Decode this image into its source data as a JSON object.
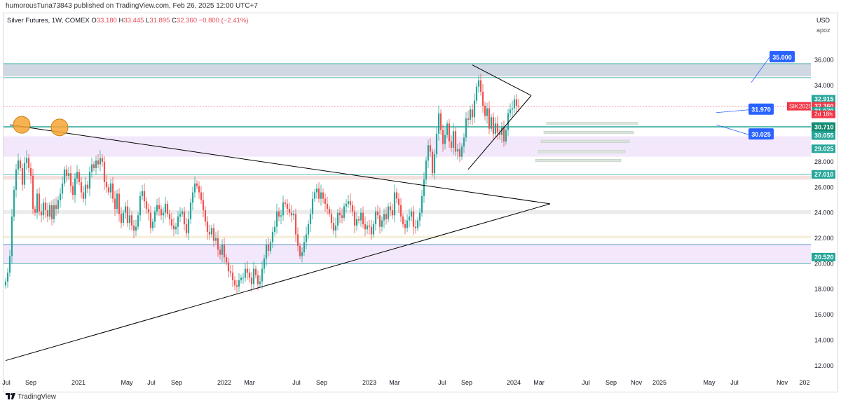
{
  "header": {
    "publisher_line": "humorousTuna73843 published on TradingView.com, Feb 26, 2025 12:00 UTC+7"
  },
  "legend": {
    "title": "Silver Futures, 1W, COMEX",
    "open_label": "O",
    "open": "33.180",
    "high_label": "H",
    "high": "33.445",
    "low_label": "L",
    "low": "31.895",
    "close_label": "C",
    "close": "32.360",
    "change": "−0.800 (−2.41%)"
  },
  "price_scale": {
    "currency": "USD",
    "mode": "apoz"
  },
  "footer": {
    "brand": "TradingView"
  },
  "colors": {
    "up": "#26a69a",
    "down": "#ef5350",
    "grid": "#f0f3fa",
    "callout": "#2962ff",
    "resistance_line": "#26a69a",
    "current_price": "#f23645",
    "trendline": "#000000",
    "marker": "#f7a534"
  },
  "chart_data": {
    "type": "candlestick",
    "title": "Silver Futures, 1W, COMEX",
    "symbol": "SIK2025",
    "ylim": [
      11,
      37.4
    ],
    "x_ticks": [
      "Jul",
      "Sep",
      "2021",
      "May",
      "Jul",
      "Sep",
      "2022",
      "Mar",
      "Jul",
      "Sep",
      "2023",
      "Mar",
      "Jul",
      "Sep",
      "2024",
      "Mar",
      "Jul",
      "Sep",
      "Nov",
      "2025",
      "May",
      "Jul",
      "Nov",
      "202"
    ],
    "y_ticks": [
      12.0,
      14.0,
      16.0,
      18.0,
      20.0,
      22.0,
      24.0,
      26.0,
      28.0,
      34.0,
      36.0
    ],
    "y_tick_labels": [
      "12.000",
      "14.000",
      "16.000",
      "18.000",
      "20.000",
      "22.000",
      "24.000",
      "26.000",
      "28.000",
      "34.000",
      "36.000"
    ],
    "price_labels": [
      {
        "value": 32.915,
        "label": "32.915",
        "kind": "green"
      },
      {
        "value": 32.36,
        "label": "32.360",
        "kind": "current"
      },
      {
        "value": 31.97,
        "label": "31.970",
        "kind": "green"
      },
      {
        "value": 30.78,
        "label": "30.780",
        "kind": "green"
      },
      {
        "value": 30.71,
        "label": "30.710",
        "kind": "darkgreen"
      },
      {
        "value": 30.055,
        "label": "30.055",
        "kind": "green"
      },
      {
        "value": 29.025,
        "label": "29.025",
        "kind": "green"
      },
      {
        "value": 27.015,
        "label": "27.015",
        "kind": "green"
      },
      {
        "value": 27.01,
        "label": "27.010",
        "kind": "green"
      },
      {
        "value": 20.52,
        "label": "20.520",
        "kind": "green"
      }
    ],
    "current_price": {
      "symbol": "SIK2025",
      "value": "32.360",
      "countdown": "2d 18h"
    },
    "callouts": [
      {
        "label": "35.000",
        "value": 35.0
      },
      {
        "label": "31.970",
        "value": 31.97
      },
      {
        "label": "30.025",
        "value": 30.025
      }
    ],
    "zones": [
      {
        "from": 34.7,
        "to": 35.7,
        "color": "#cfd8e3"
      },
      {
        "from": 28.4,
        "to": 30.0,
        "color": "#f3e8fb"
      },
      {
        "from": 26.6,
        "to": 26.9,
        "color": "#f5e0e0"
      },
      {
        "from": 23.9,
        "to": 24.2,
        "color": "#ececec"
      },
      {
        "from": 22.0,
        "to": 22.2,
        "color": "#f6f0dc"
      },
      {
        "from": 20.0,
        "to": 21.5,
        "color": "#f3e8fb"
      }
    ],
    "horizontal_lines": [
      35.7,
      34.6,
      30.78,
      30.71,
      27.0,
      21.5,
      20.0
    ],
    "weekly_closes": [
      18.6,
      19.3,
      20.6,
      23.7,
      25.8,
      27.4,
      28.1,
      27.5,
      26.2,
      27.9,
      28.3,
      27.5,
      26.9,
      24.3,
      24.0,
      25.5,
      24.1,
      23.8,
      24.8,
      24.2,
      23.7,
      24.6,
      23.5,
      24.6,
      24.3,
      25.0,
      25.5,
      26.3,
      27.4,
      26.9,
      27.1,
      26.1,
      25.4,
      26.7,
      27.2,
      26.4,
      25.6,
      25.1,
      26.2,
      25.9,
      27.2,
      27.8,
      27.5,
      28.1,
      27.8,
      28.3,
      28.0,
      26.4,
      26.0,
      25.6,
      26.3,
      25.1,
      24.3,
      25.5,
      23.9,
      23.2,
      24.0,
      24.5,
      23.2,
      23.8,
      23.0,
      22.6,
      22.9,
      23.8,
      25.3,
      25.7,
      24.9,
      24.3,
      24.0,
      22.8,
      23.3,
      24.1,
      24.6,
      24.3,
      23.8,
      24.0,
      24.7,
      23.9,
      23.5,
      23.0,
      22.7,
      22.9,
      23.7,
      23.9,
      24.1,
      23.1,
      22.4,
      23.5,
      24.8,
      25.6,
      26.3,
      26.1,
      25.6,
      25.0,
      24.2,
      23.3,
      22.5,
      22.3,
      22.8,
      21.8,
      22.0,
      21.1,
      20.7,
      21.5,
      20.5,
      20.1,
      19.4,
      19.3,
      18.7,
      18.3,
      18.2,
      18.7,
      18.9,
      18.9,
      19.6,
      19.3,
      18.9,
      18.4,
      19.6,
      19.1,
      18.4,
      18.6,
      19.6,
      20.4,
      21.5,
      21.0,
      21.7,
      22.5,
      22.9,
      24.1,
      23.7,
      23.8,
      24.8,
      24.7,
      24.3,
      24.0,
      23.8,
      23.9,
      22.3,
      21.4,
      20.6,
      20.9,
      21.7,
      22.3,
      23.1,
      23.9,
      25.1,
      25.6,
      25.9,
      25.1,
      25.6,
      25.1,
      24.7,
      24.3,
      23.9,
      23.2,
      22.6,
      23.0,
      24.0,
      23.8,
      23.6,
      24.5,
      24.7,
      24.9,
      24.6,
      24.1,
      23.0,
      23.5,
      23.4,
      24.0,
      23.1,
      22.7,
      23.0,
      22.9,
      22.3,
      23.1,
      24.1,
      23.8,
      22.9,
      23.4,
      23.9,
      23.5,
      24.5,
      24.2,
      23.8,
      25.6,
      25.1,
      24.6,
      23.7,
      23.1,
      22.8,
      23.4,
      23.7,
      24.1,
      22.9,
      22.8,
      23.4,
      24.0,
      25.3,
      26.6,
      28.1,
      29.3,
      28.8,
      27.1,
      28.6,
      30.2,
      31.8,
      30.5,
      29.4,
      30.1,
      31.0,
      29.6,
      29.1,
      30.4,
      28.8,
      29.0,
      28.4,
      29.2,
      29.9,
      31.4,
      31.3,
      32.1,
      31.5,
      32.8,
      33.9,
      34.4,
      33.5,
      32.4,
      31.6,
      32.2,
      30.6,
      31.5,
      30.2,
      31.0,
      30.3,
      30.1,
      30.7,
      29.6,
      30.5,
      31.8,
      32.1,
      32.2,
      32.9,
      32.4,
      32.36
    ],
    "trendlines": [
      {
        "from_index": 2,
        "from_value": 30.9,
        "to_index": 259,
        "to_value": 24.7
      },
      {
        "from_index": 0,
        "from_value": 12.4,
        "to_index": 259,
        "to_value": 24.7
      },
      {
        "from_index": 222,
        "from_value": 35.6,
        "to_index": 250,
        "to_value": 33.2
      },
      {
        "from_index": 220,
        "from_value": 27.4,
        "to_index": 250,
        "to_value": 33.2
      }
    ],
    "markers": [
      {
        "index": 3,
        "value": 30.9
      },
      {
        "index": 21,
        "value": 30.7
      }
    ]
  }
}
